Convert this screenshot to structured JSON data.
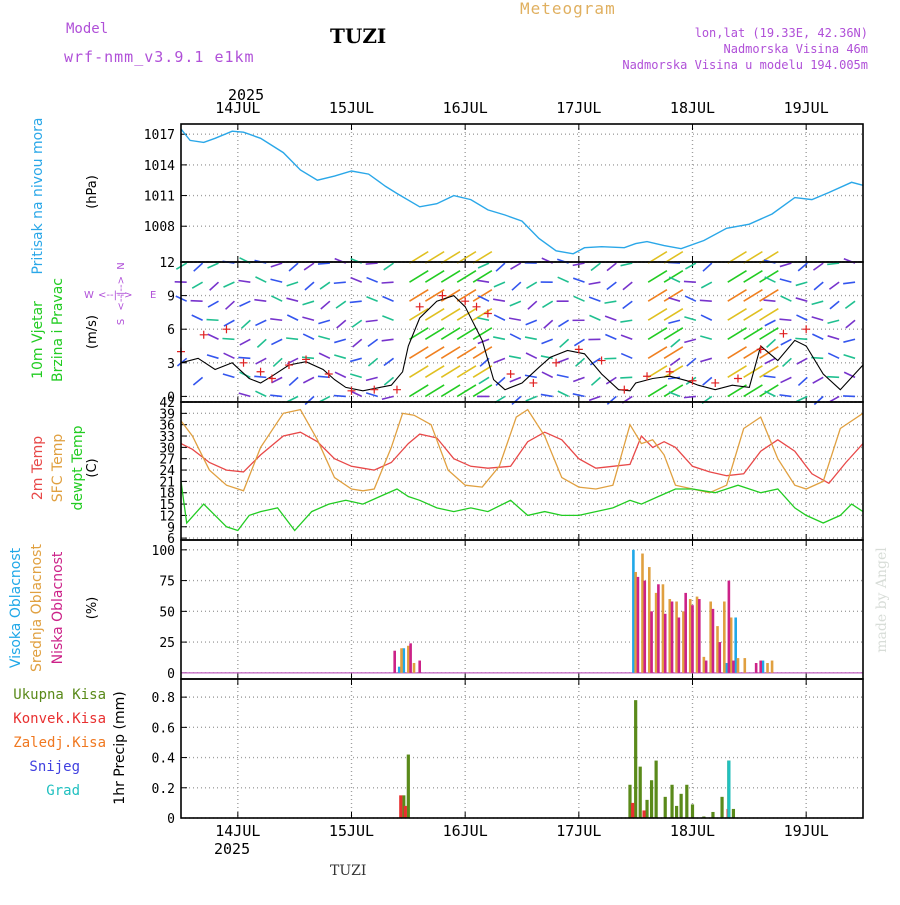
{
  "header": {
    "model_label": "Model",
    "model_name": "wrf-nmm_v3.9.1 e1km",
    "station": "TUZI",
    "title": "Meteogram",
    "lonlat": "lon,lat (19.33E, 42.36N)",
    "elevation": "Nadmorska Visina 46m",
    "elevation_model": "Nadmorska Visina u modelu 194.005m",
    "watermark": "made by Angel",
    "footer_station": "TUZI"
  },
  "time_axis": {
    "year_label": "2025",
    "day_labels": [
      "14JUL",
      "15JUL",
      "16JUL",
      "17JUL",
      "18JUL",
      "19JUL"
    ],
    "range_days": [
      -0.5,
      5.5
    ]
  },
  "colors": {
    "pressure": "#2aa7e8",
    "wind_speed": "#000000",
    "gust": "#e02020",
    "temp2m": "#e84848",
    "sfc_temp": "#e0a040",
    "dewpoint": "#22cc22",
    "cloud_high": "#20a8e8",
    "cloud_mid": "#e0a040",
    "cloud_low": "#cc2288",
    "precip_total": "#5a8a1a",
    "precip_conv": "#e83030",
    "precip_frz": "#f07820",
    "snow": "#4040e0",
    "hail": "#20c0c0",
    "label_purple": "#b050d8",
    "title_orange": "#e0b060",
    "grid": "#a0a0a0"
  },
  "chart_data": [
    {
      "type": "line",
      "panel": "pressure",
      "ylabel": "Pritisak na nivou mora",
      "unit": "(hPa)",
      "yticks": [
        1008,
        1011,
        1014,
        1017
      ],
      "ylim": [
        1004.5,
        1018
      ],
      "series": [
        {
          "x": [
            -0.5,
            -0.42,
            -0.3,
            -0.2,
            -0.05,
            0.05,
            0.2,
            0.4,
            0.55,
            0.7,
            0.85,
            1.0,
            1.15,
            1.3,
            1.4,
            1.6,
            1.75,
            1.9,
            2.05,
            2.2,
            2.35,
            2.5,
            2.65,
            2.8,
            2.95,
            3.05,
            3.2,
            3.4,
            3.5,
            3.6,
            3.75,
            3.9,
            4.1,
            4.3,
            4.5,
            4.7,
            4.9,
            5.05,
            5.2,
            5.4,
            5.5
          ],
          "y": [
            1017.5,
            1016.4,
            1016.2,
            1016.6,
            1017.3,
            1017.2,
            1016.6,
            1015.2,
            1013.5,
            1012.5,
            1012.9,
            1013.4,
            1013.1,
            1011.9,
            1011.2,
            1009.9,
            1010.2,
            1011.0,
            1010.6,
            1009.6,
            1009.1,
            1008.5,
            1006.8,
            1005.6,
            1005.3,
            1005.9,
            1006.0,
            1005.9,
            1006.3,
            1006.5,
            1006.1,
            1005.8,
            1006.6,
            1007.8,
            1008.2,
            1009.2,
            1010.8,
            1010.6,
            1011.3,
            1012.3,
            1012.0
          ]
        }
      ]
    },
    {
      "type": "line",
      "panel": "wind",
      "ylabel": "10m Vjetar Brzina i Pravac",
      "unit": "(m/s)",
      "compass": {
        "north": "N",
        "south": "S",
        "west": "W",
        "east": "E"
      },
      "yticks": [
        0,
        3,
        6,
        9,
        12
      ],
      "ylim": [
        -0.5,
        12
      ],
      "series": [
        {
          "name": "speed",
          "x": [
            -0.5,
            -0.35,
            -0.2,
            -0.05,
            0.1,
            0.2,
            0.3,
            0.45,
            0.6,
            0.75,
            0.85,
            0.95,
            1.1,
            1.25,
            1.35,
            1.45,
            1.5,
            1.6,
            1.75,
            1.9,
            2.0,
            2.15,
            2.25,
            2.35,
            2.5,
            2.65,
            2.75,
            2.9,
            3.05,
            3.2,
            3.35,
            3.45,
            3.5,
            3.65,
            3.8,
            3.95,
            4.05,
            4.2,
            4.35,
            4.5,
            4.6,
            4.75,
            4.9,
            5.0,
            5.15,
            5.3,
            5.5
          ],
          "y": [
            3.0,
            3.4,
            2.4,
            3.0,
            1.6,
            1.2,
            1.8,
            2.8,
            3.1,
            2.4,
            1.5,
            0.8,
            0.5,
            0.8,
            1.0,
            2.2,
            4.5,
            7.0,
            8.5,
            9.0,
            8.0,
            5.0,
            1.5,
            0.6,
            1.2,
            2.6,
            3.5,
            4.1,
            3.8,
            2.0,
            0.6,
            0.5,
            1.2,
            1.6,
            1.8,
            1.4,
            1.0,
            0.6,
            1.0,
            0.8,
            4.5,
            3.2,
            5.0,
            4.5,
            2.0,
            0.6,
            2.8
          ]
        },
        {
          "name": "gust",
          "x": [
            -0.5,
            -0.3,
            -0.1,
            0.05,
            0.2,
            0.3,
            0.45,
            0.6,
            0.8,
            1.0,
            1.2,
            1.4,
            1.6,
            1.8,
            2.0,
            2.1,
            2.2,
            2.4,
            2.6,
            2.8,
            3.0,
            3.2,
            3.4,
            3.6,
            3.8,
            4.0,
            4.2,
            4.4,
            4.6,
            4.8,
            5.0
          ],
          "y": [
            4.0,
            5.5,
            6.0,
            3.0,
            2.2,
            1.6,
            2.8,
            3.3,
            2.0,
            0.5,
            0.6,
            0.6,
            8.0,
            9.0,
            8.5,
            8.0,
            7.4,
            2.0,
            1.2,
            3.0,
            4.2,
            3.2,
            0.6,
            1.8,
            2.2,
            1.4,
            1.2,
            1.6,
            4.2,
            5.6,
            6.0
          ]
        }
      ]
    },
    {
      "type": "line",
      "panel": "temperature",
      "ylabel_lines": [
        "2m Temp",
        "SFC Temp",
        "dewpt Temp"
      ],
      "unit": "(C)",
      "yticks": [
        6,
        9,
        12,
        15,
        18,
        21,
        24,
        27,
        30,
        33,
        36,
        39,
        42
      ],
      "ylim": [
        5.5,
        42
      ],
      "series": [
        {
          "name": "2m Temp",
          "x": [
            -0.5,
            -0.4,
            -0.25,
            -0.1,
            0.05,
            0.2,
            0.4,
            0.55,
            0.7,
            0.85,
            1.0,
            1.1,
            1.2,
            1.35,
            1.5,
            1.6,
            1.75,
            1.9,
            2.05,
            2.2,
            2.4,
            2.55,
            2.7,
            2.85,
            3.0,
            3.15,
            3.3,
            3.45,
            3.55,
            3.65,
            3.75,
            3.85,
            4.0,
            4.15,
            4.3,
            4.45,
            4.6,
            4.75,
            4.9,
            5.05,
            5.2,
            5.35,
            5.5
          ],
          "y": [
            31.0,
            29.5,
            26.0,
            24.0,
            23.5,
            28.0,
            33.0,
            34.0,
            31.5,
            27.0,
            25.0,
            24.5,
            24.0,
            26.0,
            31.0,
            33.5,
            32.5,
            27.0,
            25.0,
            24.5,
            25.0,
            31.5,
            34.0,
            32.0,
            27.0,
            24.5,
            25.0,
            25.5,
            33.0,
            30.0,
            31.5,
            30.0,
            25.0,
            23.5,
            22.5,
            23.0,
            29.0,
            32.0,
            29.0,
            23.0,
            20.5,
            26.0,
            31.0
          ]
        },
        {
          "name": "SFC Temp",
          "x": [
            -0.5,
            -0.4,
            -0.25,
            -0.1,
            0.05,
            0.2,
            0.4,
            0.55,
            0.7,
            0.85,
            1.0,
            1.1,
            1.2,
            1.35,
            1.45,
            1.55,
            1.7,
            1.85,
            2.0,
            2.15,
            2.3,
            2.45,
            2.55,
            2.7,
            2.85,
            3.0,
            3.15,
            3.3,
            3.45,
            3.55,
            3.65,
            3.75,
            3.85,
            4.0,
            4.15,
            4.3,
            4.45,
            4.6,
            4.75,
            4.9,
            5.0,
            5.15,
            5.3,
            5.5
          ],
          "y": [
            37.0,
            33.0,
            24.0,
            20.0,
            18.5,
            30.0,
            39.0,
            40.0,
            32.0,
            22.0,
            19.0,
            18.5,
            19.0,
            30.0,
            39.0,
            38.5,
            36.0,
            24.0,
            20.0,
            19.5,
            25.0,
            38.0,
            40.0,
            33.0,
            22.0,
            19.5,
            19.0,
            20.0,
            36.0,
            31.0,
            32.0,
            28.0,
            20.0,
            19.0,
            18.0,
            20.0,
            35.0,
            38.0,
            27.0,
            20.0,
            19.0,
            21.0,
            35.0,
            39.0
          ]
        },
        {
          "name": "dewpt Temp",
          "x": [
            -0.5,
            -0.45,
            -0.3,
            -0.2,
            -0.1,
            0.0,
            0.1,
            0.2,
            0.35,
            0.5,
            0.65,
            0.8,
            0.95,
            1.1,
            1.25,
            1.4,
            1.5,
            1.6,
            1.75,
            1.9,
            2.05,
            2.2,
            2.4,
            2.55,
            2.7,
            2.85,
            3.0,
            3.15,
            3.3,
            3.45,
            3.55,
            3.7,
            3.85,
            4.0,
            4.2,
            4.4,
            4.6,
            4.75,
            4.9,
            5.0,
            5.15,
            5.3,
            5.4,
            5.5
          ],
          "y": [
            21.0,
            10.0,
            15.0,
            12.0,
            9.0,
            8.0,
            12.0,
            13.0,
            14.0,
            8.0,
            13.0,
            15.0,
            16.0,
            15.0,
            17.0,
            19.0,
            17.0,
            16.0,
            14.0,
            13.0,
            14.0,
            13.0,
            16.0,
            12.0,
            13.0,
            12.0,
            12.0,
            13.0,
            14.0,
            16.0,
            15.0,
            17.0,
            19.0,
            19.0,
            18.0,
            20.0,
            18.0,
            19.0,
            14.0,
            12.0,
            10.0,
            12.0,
            15.0,
            13.0
          ]
        }
      ]
    },
    {
      "type": "bar",
      "panel": "cloud",
      "ylabel_lines": [
        "Visoka Oblacnost",
        "Srednja Oblacnost",
        "Niska Oblacnost"
      ],
      "unit": "(%)",
      "yticks": [
        0,
        25,
        50,
        75,
        100
      ],
      "ylim": [
        -5,
        108
      ],
      "series": [
        {
          "name": "Visoka Oblacnost",
          "x": [
            1.42,
            1.46,
            3.48,
            4.3,
            4.38,
            4.62
          ],
          "values": [
            5,
            20,
            100,
            8,
            45,
            10
          ]
        },
        {
          "name": "Srednja Oblacnost",
          "x": [
            1.44,
            1.5,
            1.55,
            3.5,
            3.56,
            3.62,
            3.68,
            3.74,
            3.8,
            3.86,
            3.92,
            3.98,
            4.04,
            4.1,
            4.16,
            4.22,
            4.28,
            4.34,
            4.4,
            4.46,
            4.66,
            4.7
          ],
          "values": [
            20,
            22,
            8,
            82,
            97,
            86,
            65,
            72,
            60,
            58,
            50,
            60,
            62,
            13,
            58,
            38,
            58,
            45,
            12,
            12,
            8,
            10
          ]
        },
        {
          "name": "Niska Oblacnost",
          "x": [
            1.38,
            1.52,
            1.6,
            3.52,
            3.58,
            3.64,
            3.7,
            3.76,
            3.82,
            3.88,
            3.94,
            4.0,
            4.06,
            4.12,
            4.18,
            4.24,
            4.32,
            4.36,
            4.56,
            4.6
          ],
          "values": [
            18,
            24,
            10,
            78,
            75,
            50,
            72,
            48,
            58,
            45,
            65,
            55,
            60,
            10,
            52,
            25,
            75,
            10,
            8,
            10
          ]
        }
      ]
    },
    {
      "type": "bar",
      "panel": "precip",
      "legend": [
        "Ukupna Kisa",
        "Konvek.Kisa",
        "Zaledj.Kisa",
        "Snijeg",
        "Grad"
      ],
      "ylabel": "1hr Precip (mm)",
      "yticks": [
        0,
        0.2,
        0.4,
        0.6,
        0.8
      ],
      "ylim": [
        0,
        0.92
      ],
      "series": [
        {
          "name": "Ukupna Kisa",
          "x": [
            1.46,
            1.5,
            3.45,
            3.5,
            3.54,
            3.6,
            3.64,
            3.68,
            3.76,
            3.82,
            3.86,
            3.9,
            3.95,
            4.0,
            4.1,
            4.18,
            4.26,
            4.32,
            4.36
          ],
          "values": [
            0.15,
            0.42,
            0.22,
            0.78,
            0.34,
            0.12,
            0.25,
            0.38,
            0.14,
            0.22,
            0.08,
            0.16,
            0.22,
            0.09,
            0.01,
            0.04,
            0.14,
            0.38,
            0.06
          ]
        },
        {
          "name": "Konvek.Kisa",
          "x": [
            1.46,
            1.5,
            3.5,
            3.6,
            4.34
          ],
          "values": [
            0.15,
            0.08,
            0.1,
            0.05,
            0.06
          ]
        },
        {
          "name": "Grad",
          "x": [
            4.32
          ],
          "values": [
            0.38
          ]
        }
      ]
    }
  ]
}
